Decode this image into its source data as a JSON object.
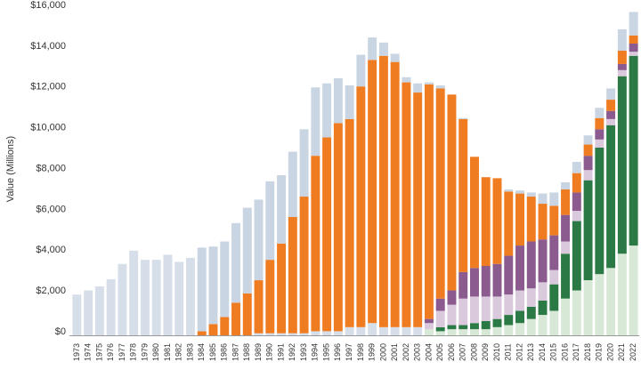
{
  "chart_data": {
    "type": "stacked_bar",
    "y_label": "Value (Millions)",
    "categories": [
      "1973",
      "1974",
      "1975",
      "1976",
      "1977",
      "1978",
      "1979",
      "1980",
      "1981",
      "1982",
      "1983",
      "1984",
      "1985",
      "1986",
      "1987",
      "1988",
      "1989",
      "1990",
      "1991",
      "1992",
      "1993",
      "1994",
      "1995",
      "1996",
      "1997",
      "1998",
      "1999",
      "2000",
      "2001",
      "2002",
      "2003",
      "2004",
      "2005",
      "2006",
      "2007",
      "2008",
      "2009",
      "2010",
      "2011",
      "2012",
      "2013",
      "2014",
      "2015",
      "2016",
      "2017",
      "2018",
      "2019",
      "2020",
      "2021",
      "2022"
    ],
    "ylim": [
      0,
      16000
    ],
    "yticks": [
      {
        "value": 0,
        "label": "$0"
      },
      {
        "value": 2000,
        "label": "$2,000"
      },
      {
        "value": 4000,
        "label": "$4,000"
      },
      {
        "value": 6000,
        "label": "$6,000"
      },
      {
        "value": 8000,
        "label": "$8,000"
      },
      {
        "value": 10000,
        "label": "$10,000"
      },
      {
        "value": 12000,
        "label": "$12,000"
      },
      {
        "value": 14000,
        "label": "$14,000"
      },
      {
        "value": 16000,
        "label": "$16,000"
      }
    ],
    "series": [
      {
        "color": "#d6dfe9",
        "values": [
          2000,
          2200,
          2400,
          2750,
          3500,
          4150,
          3700,
          3700,
          3950,
          3600,
          3800,
          0,
          0,
          0,
          0,
          0,
          100,
          100,
          100,
          100,
          100,
          200,
          200,
          200,
          400,
          400,
          600,
          400,
          400,
          400,
          400,
          0,
          0,
          0,
          0,
          0,
          0,
          0,
          0,
          0,
          0,
          0,
          0,
          0,
          0,
          0,
          0,
          0,
          0,
          0
        ]
      },
      {
        "color": "#d8e8d6",
        "values": [
          0,
          0,
          0,
          0,
          0,
          0,
          0,
          0,
          0,
          0,
          0,
          0,
          0,
          0,
          0,
          0,
          0,
          0,
          0,
          0,
          0,
          0,
          0,
          0,
          0,
          0,
          0,
          0,
          0,
          0,
          0,
          300,
          200,
          300,
          300,
          300,
          300,
          400,
          500,
          600,
          800,
          1000,
          1200,
          1800,
          2200,
          2700,
          3000,
          3300,
          4000,
          4400
        ]
      },
      {
        "color": "#2b7a45",
        "values": [
          0,
          0,
          0,
          0,
          0,
          0,
          0,
          0,
          0,
          0,
          0,
          0,
          0,
          0,
          0,
          0,
          0,
          0,
          0,
          0,
          0,
          0,
          0,
          0,
          0,
          0,
          0,
          0,
          0,
          0,
          0,
          0,
          200,
          200,
          200,
          300,
          400,
          400,
          500,
          600,
          600,
          700,
          1300,
          2200,
          3400,
          4900,
          6200,
          7000,
          8700,
          9300
        ]
      },
      {
        "color": "#dac8dd",
        "values": [
          0,
          0,
          0,
          0,
          0,
          0,
          0,
          0,
          0,
          0,
          0,
          0,
          0,
          0,
          0,
          0,
          0,
          0,
          0,
          0,
          0,
          0,
          0,
          0,
          0,
          0,
          0,
          0,
          0,
          0,
          0,
          300,
          800,
          1000,
          1300,
          1300,
          1200,
          1100,
          1000,
          1000,
          900,
          900,
          700,
          600,
          500,
          500,
          400,
          300,
          300,
          200
        ]
      },
      {
        "color": "#8b5a8e",
        "values": [
          0,
          0,
          0,
          0,
          0,
          0,
          0,
          0,
          0,
          0,
          0,
          0,
          0,
          0,
          0,
          0,
          0,
          0,
          0,
          0,
          0,
          0,
          0,
          0,
          0,
          0,
          0,
          0,
          0,
          0,
          0,
          200,
          600,
          700,
          1300,
          1400,
          1500,
          1600,
          1900,
          2200,
          2300,
          2100,
          1700,
          1300,
          900,
          700,
          500,
          400,
          300,
          400
        ]
      },
      {
        "color": "#f07c22",
        "values": [
          0,
          0,
          0,
          0,
          0,
          0,
          0,
          0,
          0,
          0,
          0,
          200,
          550,
          900,
          1600,
          2050,
          2600,
          3600,
          4400,
          5700,
          6700,
          8600,
          9500,
          10200,
          10200,
          11800,
          12900,
          13300,
          13000,
          12000,
          11500,
          11500,
          10300,
          9600,
          7500,
          5450,
          4350,
          4200,
          3150,
          2550,
          2200,
          1750,
          1450,
          1250,
          950,
          550,
          550,
          550,
          650,
          400
        ]
      },
      {
        "color": "#c9d5e2",
        "values": [
          0,
          0,
          0,
          0,
          0,
          0,
          0,
          0,
          0,
          0,
          0,
          4100,
          3800,
          3700,
          3900,
          4200,
          3950,
          3850,
          3350,
          3200,
          3300,
          3350,
          2650,
          2200,
          1650,
          1550,
          1100,
          650,
          400,
          250,
          450,
          100,
          150,
          0,
          50,
          0,
          0,
          0,
          100,
          150,
          200,
          500,
          650,
          350,
          550,
          450,
          500,
          550,
          1050,
          1150
        ]
      }
    ]
  }
}
